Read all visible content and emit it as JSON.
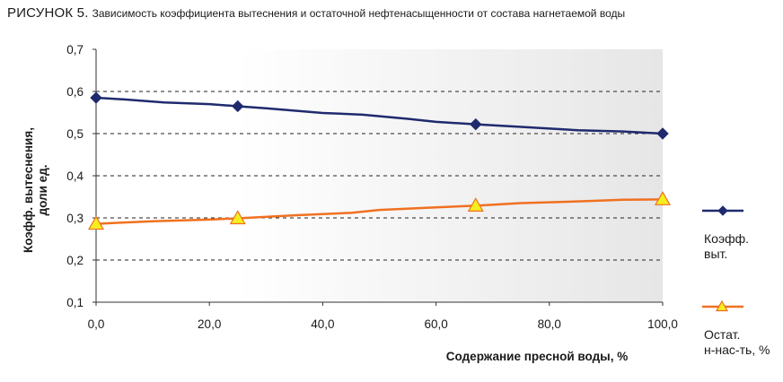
{
  "figure": {
    "caption_lead": "РИСУНОК 5.",
    "caption_text": "Зависимость коэффициента вытеснения и остаточной нефтенасыщенности от состава нагнетаемой воды"
  },
  "chart_data": {
    "type": "line",
    "title": "",
    "xlabel": "Содержание пресной воды, %",
    "ylabel_lines": [
      "Коэфф. вытеснения,",
      "доли ед."
    ],
    "xlim": [
      0,
      100
    ],
    "ylim": [
      0.1,
      0.7
    ],
    "xticks": [
      "0,0",
      "20,0",
      "40,0",
      "60,0",
      "80,0",
      "100,0"
    ],
    "xtick_values": [
      0,
      20,
      40,
      60,
      80,
      100
    ],
    "yticks": [
      "0,1",
      "0,2",
      "0,3",
      "0,4",
      "0,5",
      "0,6",
      "0,7"
    ],
    "ytick_values": [
      0.1,
      0.2,
      0.3,
      0.4,
      0.5,
      0.6,
      0.7
    ],
    "grid": "horizontal dashed",
    "legend_position": "right",
    "series": [
      {
        "name": "Коэфф. выт.",
        "legend_lines": [
          "Коэфф.",
          "выт."
        ],
        "color": "#1f2a6e",
        "marker": "diamond",
        "line": [
          [
            0,
            0.585
          ],
          [
            5,
            0.581
          ],
          [
            12,
            0.574
          ],
          [
            20,
            0.57
          ],
          [
            25,
            0.565
          ],
          [
            30,
            0.56
          ],
          [
            40,
            0.549
          ],
          [
            47,
            0.545
          ],
          [
            55,
            0.535
          ],
          [
            60,
            0.528
          ],
          [
            67,
            0.522
          ],
          [
            75,
            0.516
          ],
          [
            85,
            0.508
          ],
          [
            93,
            0.505
          ],
          [
            100,
            0.5
          ]
        ],
        "markers": [
          [
            0,
            0.585
          ],
          [
            25,
            0.565
          ],
          [
            67,
            0.522
          ],
          [
            100,
            0.5
          ]
        ]
      },
      {
        "name": "Остат. н-нас-ть, %",
        "legend_lines": [
          "Остат.",
          "н-нас-ть, %"
        ],
        "color": "#f07020",
        "marker_fill": "#f5ee1e",
        "marker": "triangle",
        "line": [
          [
            0,
            0.286
          ],
          [
            10,
            0.292
          ],
          [
            20,
            0.296
          ],
          [
            25,
            0.299
          ],
          [
            35,
            0.306
          ],
          [
            45,
            0.312
          ],
          [
            50,
            0.319
          ],
          [
            60,
            0.325
          ],
          [
            67,
            0.329
          ],
          [
            75,
            0.335
          ],
          [
            85,
            0.339
          ],
          [
            93,
            0.343
          ],
          [
            100,
            0.344
          ]
        ],
        "markers": [
          [
            0,
            0.286
          ],
          [
            25,
            0.299
          ],
          [
            67,
            0.329
          ],
          [
            100,
            0.344
          ]
        ]
      }
    ]
  }
}
